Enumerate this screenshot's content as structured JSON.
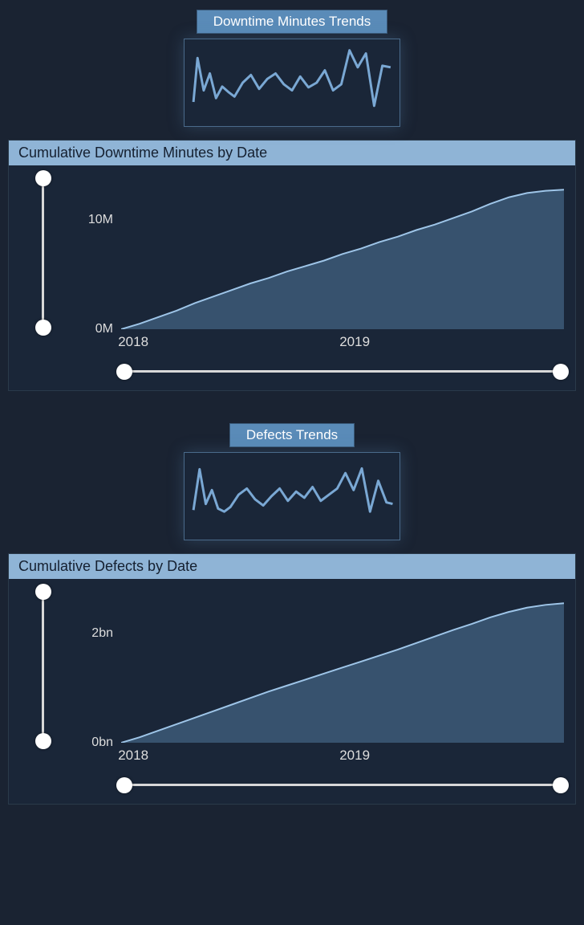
{
  "background_color": "#1a2332",
  "card_background": "#1a2638",
  "sparkline_stroke": "#7aa8d4",
  "sparkline_stroke_width": 3,
  "area_stroke": "#9ec5e8",
  "area_fill": "#3d5a78",
  "area_fill_opacity": 0.85,
  "area_stroke_width": 2,
  "title_bar_bg": "#5a8bb8",
  "header_bar_bg": "#8fb4d6",
  "header_text_color": "#152030",
  "label_color": "#dddddd",
  "slider_track_color": "#d8d8d8",
  "slider_thumb_color": "#ffffff",
  "label_fontsize": 16,
  "header_fontsize": 18,
  "title_fontsize": 17,
  "downtime_trend": {
    "title": "Downtime Minutes Trends",
    "type": "sparkline",
    "xlim": [
      0,
      100
    ],
    "ylim": [
      0,
      100
    ],
    "points": [
      [
        2,
        25
      ],
      [
        4,
        82
      ],
      [
        7,
        40
      ],
      [
        10,
        62
      ],
      [
        13,
        30
      ],
      [
        16,
        45
      ],
      [
        19,
        38
      ],
      [
        22,
        32
      ],
      [
        26,
        50
      ],
      [
        30,
        60
      ],
      [
        34,
        42
      ],
      [
        38,
        55
      ],
      [
        42,
        62
      ],
      [
        46,
        48
      ],
      [
        50,
        40
      ],
      [
        54,
        58
      ],
      [
        58,
        44
      ],
      [
        62,
        50
      ],
      [
        66,
        66
      ],
      [
        70,
        40
      ],
      [
        74,
        48
      ],
      [
        78,
        92
      ],
      [
        82,
        70
      ],
      [
        86,
        88
      ],
      [
        90,
        20
      ],
      [
        94,
        72
      ],
      [
        98,
        70
      ]
    ]
  },
  "downtime_cumulative": {
    "title": "Cumulative Downtime Minutes by Date",
    "type": "area",
    "ylim": [
      0,
      14
    ],
    "yticks": [
      {
        "v": 0,
        "label": "0M"
      },
      {
        "v": 10,
        "label": "10M"
      }
    ],
    "xlim": [
      0,
      24
    ],
    "xticks": [
      {
        "v": 0,
        "label": "2018"
      },
      {
        "v": 12,
        "label": "2019"
      }
    ],
    "data": [
      [
        0,
        0
      ],
      [
        1,
        0.5
      ],
      [
        2,
        1.1
      ],
      [
        3,
        1.7
      ],
      [
        4,
        2.4
      ],
      [
        5,
        3.0
      ],
      [
        6,
        3.6
      ],
      [
        7,
        4.2
      ],
      [
        8,
        4.7
      ],
      [
        9,
        5.3
      ],
      [
        10,
        5.8
      ],
      [
        11,
        6.3
      ],
      [
        12,
        6.9
      ],
      [
        13,
        7.4
      ],
      [
        14,
        8.0
      ],
      [
        15,
        8.5
      ],
      [
        16,
        9.1
      ],
      [
        17,
        9.6
      ],
      [
        18,
        10.2
      ],
      [
        19,
        10.8
      ],
      [
        20,
        11.5
      ],
      [
        21,
        12.1
      ],
      [
        22,
        12.5
      ],
      [
        23,
        12.7
      ],
      [
        24,
        12.8
      ]
    ],
    "vslider": {
      "min": 0,
      "max": 1,
      "lo": 0,
      "hi": 1
    },
    "hslider": {
      "min": 0,
      "max": 1,
      "lo": 0,
      "hi": 1
    }
  },
  "defects_trend": {
    "title": "Defects Trends",
    "type": "sparkline",
    "xlim": [
      0,
      100
    ],
    "ylim": [
      0,
      100
    ],
    "points": [
      [
        2,
        32
      ],
      [
        5,
        85
      ],
      [
        8,
        40
      ],
      [
        11,
        58
      ],
      [
        14,
        34
      ],
      [
        17,
        30
      ],
      [
        20,
        36
      ],
      [
        24,
        52
      ],
      [
        28,
        60
      ],
      [
        32,
        46
      ],
      [
        36,
        38
      ],
      [
        40,
        50
      ],
      [
        44,
        60
      ],
      [
        48,
        44
      ],
      [
        52,
        56
      ],
      [
        56,
        48
      ],
      [
        60,
        62
      ],
      [
        64,
        44
      ],
      [
        68,
        52
      ],
      [
        72,
        60
      ],
      [
        76,
        80
      ],
      [
        80,
        58
      ],
      [
        84,
        86
      ],
      [
        88,
        30
      ],
      [
        92,
        70
      ],
      [
        96,
        42
      ],
      [
        99,
        40
      ]
    ]
  },
  "defects_cumulative": {
    "title": "Cumulative Defects by Date",
    "type": "area",
    "ylim": [
      0,
      2.8
    ],
    "yticks": [
      {
        "v": 0,
        "label": "0bn"
      },
      {
        "v": 2,
        "label": "2bn"
      }
    ],
    "xlim": [
      0,
      24
    ],
    "xticks": [
      {
        "v": 0,
        "label": "2018"
      },
      {
        "v": 12,
        "label": "2019"
      }
    ],
    "data": [
      [
        0,
        0
      ],
      [
        1,
        0.1
      ],
      [
        2,
        0.22
      ],
      [
        3,
        0.34
      ],
      [
        4,
        0.46
      ],
      [
        5,
        0.58
      ],
      [
        6,
        0.7
      ],
      [
        7,
        0.82
      ],
      [
        8,
        0.94
      ],
      [
        9,
        1.05
      ],
      [
        10,
        1.16
      ],
      [
        11,
        1.27
      ],
      [
        12,
        1.38
      ],
      [
        13,
        1.49
      ],
      [
        14,
        1.6
      ],
      [
        15,
        1.71
      ],
      [
        16,
        1.83
      ],
      [
        17,
        1.95
      ],
      [
        18,
        2.07
      ],
      [
        19,
        2.18
      ],
      [
        20,
        2.3
      ],
      [
        21,
        2.4
      ],
      [
        22,
        2.48
      ],
      [
        23,
        2.53
      ],
      [
        24,
        2.56
      ]
    ],
    "vslider": {
      "min": 0,
      "max": 1,
      "lo": 0,
      "hi": 1
    },
    "hslider": {
      "min": 0,
      "max": 1,
      "lo": 0,
      "hi": 1
    }
  }
}
